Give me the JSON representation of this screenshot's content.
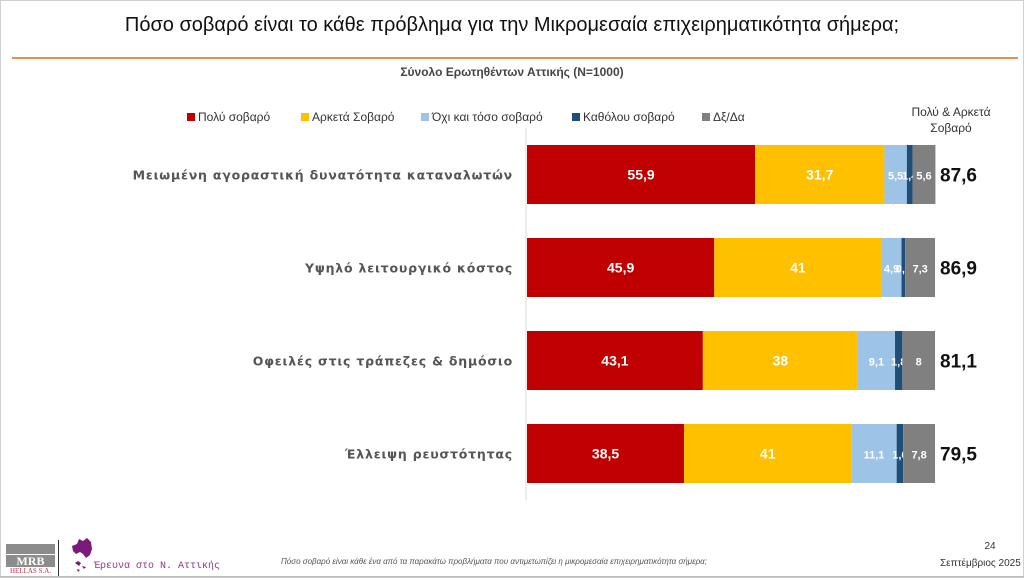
{
  "header": {
    "title": "Πόσο σοβαρό είναι το κάθε πρόβλημα  για την Μικρομεσαία επιχειρηματικότητα σήμερα;",
    "subtitle": "Σύνολο Ερωτηθέντων Αττικής (N=1000)"
  },
  "chart_data": {
    "type": "bar",
    "orientation": "horizontal",
    "stacked": true,
    "percent": true,
    "title": "Πόσο σοβαρό είναι το κάθε πρόβλημα  για την Μικρομεσαία επιχειρηματικότητα σήμερα;",
    "subtitle": "Σύνολο Ερωτηθέντων Αττικής (N=1000)",
    "xlabel": "",
    "ylabel": "",
    "xlim": [
      0,
      100
    ],
    "grid": false,
    "legend_position": "top",
    "categories": [
      "Μειωμένη αγοραστική δυνατότητα καταναλωτών",
      "Υψηλό λειτουργικό κόστος",
      "Οφειλές στις τράπεζες & δημόσιο",
      "Έλλειψη ρευστότητας"
    ],
    "series": [
      {
        "name": "Πολύ σοβαρό",
        "color": "#C00000",
        "values": [
          55.9,
          45.9,
          43.1,
          38.5
        ],
        "labels": [
          "55,9",
          "45,9",
          "43,1",
          "38,5"
        ]
      },
      {
        "name": "Αρκετά Σοβαρό",
        "color": "#FFC000",
        "values": [
          31.7,
          41,
          38,
          41
        ],
        "labels": [
          "31,7",
          "41",
          "38",
          "41"
        ]
      },
      {
        "name": "Όχι και τόσο σοβαρό",
        "color": "#9DC3E6",
        "values": [
          5.5,
          4.9,
          9.1,
          11.1
        ],
        "labels": [
          "5,5",
          "4,9",
          "9,1",
          "11,1"
        ]
      },
      {
        "name": "Καθόλου σοβαρό",
        "color": "#1F4E79",
        "values": [
          1.4,
          0.9,
          1.8,
          1.6
        ],
        "labels": [
          "1,4",
          "0,9",
          "1,8",
          "1,6"
        ]
      },
      {
        "name": "Δξ/Δα",
        "color": "#808080",
        "values": [
          5.6,
          7.3,
          8,
          7.8
        ],
        "labels": [
          "5,6",
          "7,3",
          "8",
          "7,8"
        ]
      }
    ],
    "summary_column": {
      "header": "Πολύ & Αρκετά Σοβαρό",
      "values": [
        87.6,
        86.9,
        81.1,
        79.5
      ],
      "labels": [
        "87,6",
        "86,9",
        "81,1",
        "79,5"
      ]
    }
  },
  "footer": {
    "logo_text": "MRB",
    "logo_subtext": "HELLAS S.A.",
    "research_label": "Έρευνα στο Ν. Αττικής",
    "question": "Πόσο σοβαρό είναι κάθε ένα από τα παρακάτω προβλήματα που αντιμετωπίζει η μικρομεσαία επιχειρηματικότητα σήμερα;",
    "page_number": "24",
    "date": "Σεπτέμβριος 2025"
  }
}
